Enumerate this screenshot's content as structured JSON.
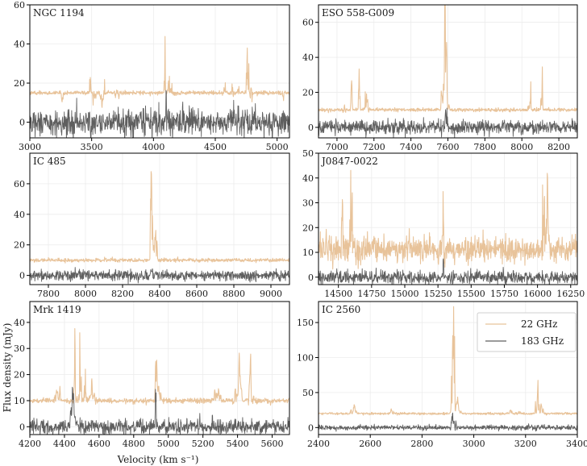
{
  "figure": {
    "xlabel": "Velocity (km s⁻¹)",
    "ylabel": "Flux density (mJy)",
    "legend": {
      "placement": "top-right of panel 6",
      "entries": [
        "22 GHz",
        "183 GHz"
      ]
    },
    "colors": {
      "22 GHz": "#e8c39a",
      "183 GHz": "#5f5f5f",
      "axes": "#000000",
      "grid": "#ececec"
    }
  },
  "chart_data": [
    {
      "type": "line",
      "title": "NGC 1194",
      "xlim": [
        3000,
        5100
      ],
      "ylim": [
        -8,
        60
      ],
      "xticks": [
        3000,
        3500,
        4000,
        4500,
        5000
      ],
      "yticks": [
        0,
        20,
        40,
        60
      ],
      "series": [
        {
          "name": "22 GHz",
          "baseline": 15,
          "noise": 0.5,
          "seed": 11,
          "features": [
            [
              3265,
              20,
              3,
              8
            ],
            [
              3490,
              26,
              1.3,
              8
            ],
            [
              3520,
              20,
              3,
              8
            ],
            [
              3580,
              15,
              3,
              8
            ],
            [
              3605,
              24,
              1.2,
              8
            ],
            [
              3700,
              19,
              3,
              8
            ],
            [
              4095,
              52,
              1.6,
              5
            ],
            [
              4120,
              42,
              1.3,
              5
            ],
            [
              4140,
              24,
              1.3,
              6
            ],
            [
              4180,
              20,
              3,
              8
            ],
            [
              4580,
              25,
              1.4,
              8
            ],
            [
              4640,
              26,
              1.2,
              8
            ],
            [
              4690,
              22,
              1.2,
              8
            ],
            [
              4760,
              60,
              1.8,
              6
            ],
            [
              4790,
              22,
              3,
              8
            ],
            [
              5060,
              20,
              3,
              8
            ]
          ]
        },
        {
          "name": "183 GHz",
          "baseline": 0,
          "noise": 3.6,
          "seed": 29,
          "features": [
            [
              4100,
              12,
              1,
              6
            ]
          ]
        }
      ]
    },
    {
      "type": "line",
      "title": "ESO 558-G009",
      "xlim": [
        6900,
        8300
      ],
      "ylim": [
        -6,
        70
      ],
      "xticks": [
        7000,
        7200,
        7400,
        7600,
        7800,
        8000,
        8200
      ],
      "yticks": [
        0,
        20,
        40,
        60
      ],
      "series": [
        {
          "name": "22 GHz",
          "baseline": 10,
          "noise": 0.5,
          "seed": 7,
          "features": [
            [
              7040,
              16,
              3,
              20
            ],
            [
              7080,
              30,
              1.5,
              10
            ],
            [
              7120,
              28,
              1.5,
              10
            ],
            [
              7160,
              27,
              1.5,
              10
            ],
            [
              7585,
              68,
              1.6,
              10
            ],
            [
              7590,
              25,
              3,
              30
            ],
            [
              8045,
              28,
              1.5,
              10
            ],
            [
              8110,
              30,
              1.5,
              10
            ]
          ]
        },
        {
          "name": "183 GHz",
          "baseline": 0,
          "noise": 2.0,
          "seed": 41,
          "features": [
            [
              7590,
              10,
              1.5,
              12
            ]
          ]
        }
      ]
    },
    {
      "type": "line",
      "title": "IC 485",
      "xlim": [
        7700,
        9100
      ],
      "ylim": [
        -6,
        80
      ],
      "xticks": [
        7800,
        8000,
        8200,
        8400,
        8600,
        8800,
        9000
      ],
      "yticks": [
        0,
        20,
        40,
        60
      ],
      "series": [
        {
          "name": "22 GHz",
          "baseline": 10,
          "noise": 0.6,
          "seed": 5,
          "features": [
            [
              8355,
              70,
              1.5,
              16
            ],
            [
              8375,
              25,
              2.5,
              20
            ]
          ]
        },
        {
          "name": "183 GHz",
          "baseline": 0,
          "noise": 1.7,
          "seed": 53,
          "features": [
            [
              8355,
              6,
              1.5,
              15
            ]
          ]
        }
      ]
    },
    {
      "type": "line",
      "title": "J0847-0022",
      "xlim": [
        14350,
        16300
      ],
      "ylim": [
        -3,
        50
      ],
      "xticks": [
        14500,
        14750,
        15000,
        15250,
        15500,
        15750,
        16000,
        16250
      ],
      "yticks": [
        0,
        10,
        20,
        30,
        40,
        50
      ],
      "series": [
        {
          "name": "22 GHz",
          "baseline": 11,
          "noise": 2.5,
          "seed": 3,
          "features": [
            [
              14530,
              34,
              1.5,
              10
            ],
            [
              14600,
              48,
              1.6,
              10
            ],
            [
              15290,
              42,
              1.4,
              8
            ],
            [
              16050,
              50,
              1.5,
              12
            ],
            [
              16075,
              30,
              2,
              25
            ]
          ]
        },
        {
          "name": "183 GHz",
          "baseline": 0,
          "noise": 1.3,
          "seed": 61,
          "features": [
            [
              15290,
              5,
              1.5,
              15
            ]
          ]
        }
      ]
    },
    {
      "type": "line",
      "title": "Mrk 1419",
      "xlim": [
        4200,
        5700
      ],
      "ylim": [
        -3,
        48
      ],
      "xticks": [
        4200,
        4400,
        4600,
        4800,
        5000,
        5200,
        5400,
        5600
      ],
      "yticks": [
        0,
        10,
        20,
        30,
        40
      ],
      "series": [
        {
          "name": "22 GHz",
          "baseline": 10,
          "noise": 0.5,
          "seed": 9,
          "features": [
            [
              4360,
              18,
              3,
              12
            ],
            [
              4460,
              42,
              1.4,
              8
            ],
            [
              4490,
              37,
              1.4,
              8
            ],
            [
              4520,
              28,
              1.5,
              8
            ],
            [
              4560,
              20,
              3,
              10
            ],
            [
              4925,
              46,
              1.5,
              6
            ],
            [
              4945,
              20,
              3,
              10
            ],
            [
              5280,
              16,
              3,
              30
            ],
            [
              5410,
              22,
              3,
              30
            ],
            [
              5470,
              20,
              3,
              20
            ]
          ]
        },
        {
          "name": "183 GHz",
          "baseline": 0,
          "noise": 1.4,
          "seed": 77,
          "features": [
            [
              4450,
              4,
              3,
              40
            ],
            [
              4925,
              26,
              1.3,
              6
            ]
          ]
        }
      ]
    },
    {
      "type": "line",
      "title": "IC 2560",
      "xlim": [
        2400,
        3400
      ],
      "ylim": [
        -10,
        180
      ],
      "xticks": [
        2400,
        2600,
        2800,
        3000,
        3200,
        3400
      ],
      "yticks": [
        0,
        50,
        100,
        150
      ],
      "series": [
        {
          "name": "22 GHz",
          "baseline": 20,
          "noise": 0.8,
          "seed": 13,
          "features": [
            [
              2540,
              38,
              3,
              8
            ],
            [
              2680,
              30,
              3,
              6
            ],
            [
              2920,
              175,
              1.4,
              10
            ],
            [
              2935,
              40,
              3,
              15
            ],
            [
              3140,
              32,
              1.5,
              4
            ],
            [
              3180,
              35,
              1.5,
              4
            ],
            [
              3245,
              75,
              1.5,
              6
            ],
            [
              3260,
              40,
              2,
              8
            ]
          ]
        },
        {
          "name": "183 GHz",
          "baseline": 0,
          "noise": 1.8,
          "seed": 91,
          "features": [
            [
              2920,
              27,
              1.5,
              8
            ]
          ]
        }
      ]
    }
  ]
}
